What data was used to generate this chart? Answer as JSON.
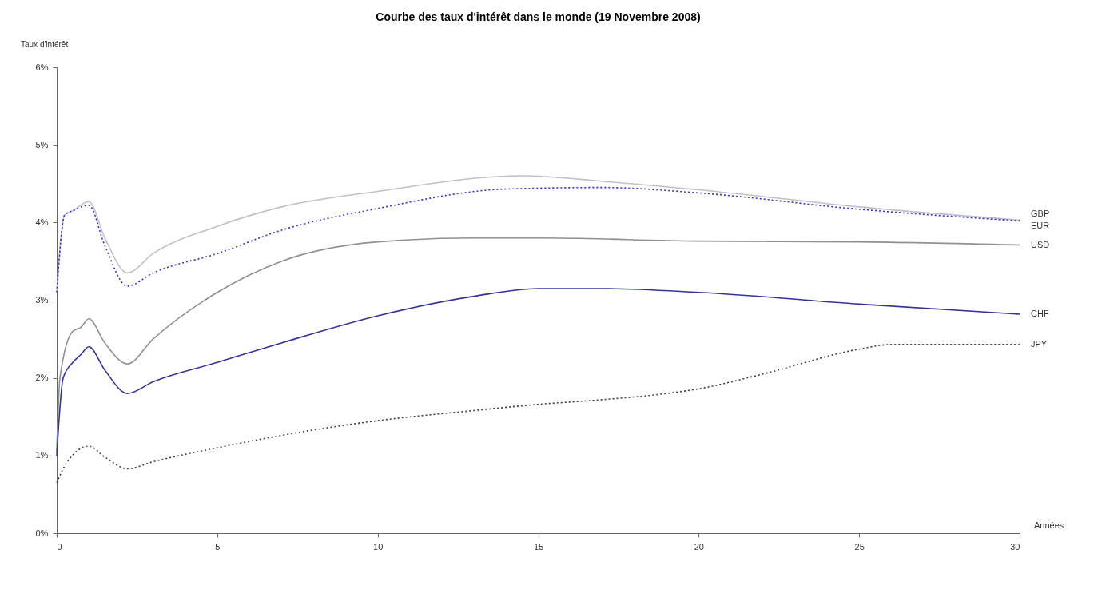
{
  "chart_data": {
    "type": "line",
    "title": "Courbe des taux d'intérêt dans le monde (19 Novembre 2008)",
    "xlabel": "Années",
    "ylabel": "Taux d'intérêt",
    "xlim": [
      0,
      30
    ],
    "xticks": [
      0,
      5,
      10,
      15,
      20,
      25,
      30
    ],
    "ylim": [
      0,
      6
    ],
    "yticks": [
      {
        "value": 0,
        "label": "0%"
      },
      {
        "value": 1,
        "label": "1%"
      },
      {
        "value": 2,
        "label": "2%"
      },
      {
        "value": 3,
        "label": "3%"
      },
      {
        "value": 4,
        "label": "4%"
      },
      {
        "value": 5,
        "label": "5%"
      },
      {
        "value": 6,
        "label": "6%"
      }
    ],
    "grid": false,
    "marker": "none",
    "series": [
      {
        "name": "GBP",
        "color": "#c0c0c8",
        "line_style": "solid",
        "x": [
          0,
          0.25,
          0.5,
          1,
          1.5,
          2.2,
          3,
          5,
          7,
          10,
          14.5,
          17,
          20,
          25,
          30
        ],
        "values": [
          3.1,
          4.1,
          4.15,
          4.27,
          3.8,
          3.35,
          3.6,
          3.95,
          4.2,
          4.4,
          4.6,
          4.53,
          4.42,
          4.2,
          4.03
        ]
      },
      {
        "name": "EUR",
        "color": "#3333cc",
        "line_style": "dotted",
        "x": [
          0,
          0.25,
          0.5,
          1,
          1.5,
          2.2,
          3,
          5,
          7,
          10,
          14,
          17,
          20,
          25,
          30
        ],
        "values": [
          3.1,
          4.1,
          4.15,
          4.22,
          3.7,
          3.18,
          3.35,
          3.6,
          3.9,
          4.18,
          4.43,
          4.45,
          4.38,
          4.17,
          4.02
        ]
      },
      {
        "name": "USD",
        "color": "#909090",
        "line_style": "solid",
        "x": [
          0,
          0.1,
          0.5,
          0.75,
          1,
          1.5,
          2.2,
          3,
          5,
          7,
          10,
          13,
          15,
          20,
          25,
          30
        ],
        "values": [
          1.05,
          2.0,
          2.6,
          2.65,
          2.76,
          2.45,
          2.18,
          2.5,
          3.1,
          3.5,
          3.75,
          3.8,
          3.8,
          3.76,
          3.75,
          3.71
        ]
      },
      {
        "name": "CHF",
        "color": "#333399",
        "line_style": "solid",
        "x": [
          0,
          0.2,
          0.5,
          0.75,
          1,
          1.5,
          2.2,
          3,
          5,
          7,
          10,
          13,
          15,
          17,
          20,
          25,
          30
        ],
        "values": [
          1.0,
          2.0,
          2.2,
          2.3,
          2.4,
          2.1,
          1.8,
          1.95,
          2.2,
          2.45,
          2.8,
          3.05,
          3.15,
          3.15,
          3.1,
          2.95,
          2.82
        ]
      },
      {
        "name": "JPY",
        "color": "#404040",
        "line_style": "dotted",
        "x": [
          0,
          0.3,
          1,
          1.5,
          2.2,
          3,
          5,
          7,
          10,
          13,
          15,
          17,
          19,
          20,
          22,
          25,
          26,
          30
        ],
        "values": [
          0.65,
          0.9,
          1.12,
          0.98,
          0.83,
          0.92,
          1.1,
          1.26,
          1.45,
          1.58,
          1.66,
          1.72,
          1.8,
          1.86,
          2.05,
          2.37,
          2.43,
          2.43
        ]
      }
    ]
  }
}
